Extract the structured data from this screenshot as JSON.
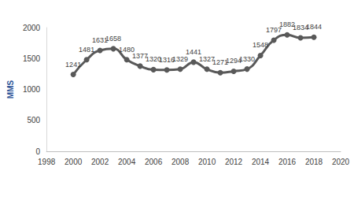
{
  "chart_data": {
    "type": "line",
    "y_label": "MMS",
    "x": [
      2000,
      2001,
      2002,
      2003,
      2004,
      2005,
      2006,
      2007,
      2008,
      2009,
      2010,
      2011,
      2012,
      2013,
      2014,
      2015,
      2016,
      2017,
      2018
    ],
    "values": [
      1241,
      1481,
      1631,
      1658,
      1480,
      1377,
      1320,
      1316,
      1329,
      1441,
      1327,
      1271,
      1294,
      1330,
      1548,
      1797,
      1882,
      1834,
      1844
    ],
    "color": "#595959",
    "marker": "circle",
    "xlim": [
      1998,
      2020
    ],
    "xticks": [
      1998,
      2000,
      2002,
      2004,
      2006,
      2008,
      2010,
      2012,
      2014,
      2016,
      2018,
      2020
    ],
    "ylim": [
      0,
      2000
    ],
    "yticks": [
      0,
      500,
      1000,
      1500,
      2000
    ],
    "grid": false,
    "data_labels": true
  }
}
